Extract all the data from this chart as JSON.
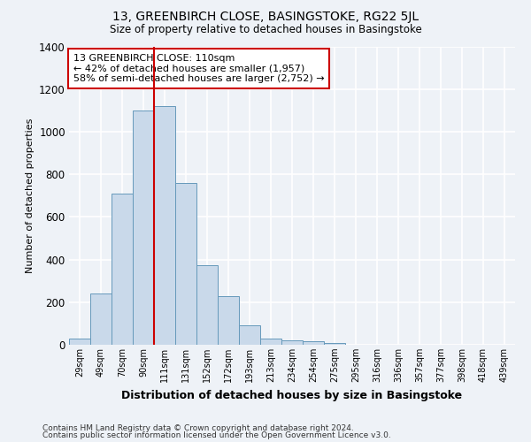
{
  "title": "13, GREENBIRCH CLOSE, BASINGSTOKE, RG22 5JL",
  "subtitle": "Size of property relative to detached houses in Basingstoke",
  "xlabel": "Distribution of detached houses by size in Basingstoke",
  "ylabel": "Number of detached properties",
  "heights": [
    30,
    240,
    710,
    1100,
    1120,
    760,
    375,
    230,
    90,
    30,
    20,
    15,
    10,
    0,
    0,
    0,
    0,
    0,
    0,
    0,
    0
  ],
  "bar_labels": [
    "29sqm",
    "49sqm",
    "70sqm",
    "90sqm",
    "111sqm",
    "131sqm",
    "152sqm",
    "172sqm",
    "193sqm",
    "213sqm",
    "234sqm",
    "254sqm",
    "275sqm",
    "295sqm",
    "316sqm",
    "336sqm",
    "357sqm",
    "377sqm",
    "398sqm",
    "418sqm",
    "439sqm"
  ],
  "bar_color": "#c9d9ea",
  "bar_edge_color": "#6699bb",
  "vline_color": "#cc0000",
  "annotation_text": "13 GREENBIRCH CLOSE: 110sqm\n← 42% of detached houses are smaller (1,957)\n58% of semi-detached houses are larger (2,752) →",
  "annotation_box_facecolor": "#ffffff",
  "annotation_box_edgecolor": "#cc0000",
  "ylim": [
    0,
    1400
  ],
  "yticks": [
    0,
    200,
    400,
    600,
    800,
    1000,
    1200,
    1400
  ],
  "bg_color": "#eef2f7",
  "grid_color": "#ffffff",
  "footnote1": "Contains HM Land Registry data © Crown copyright and database right 2024.",
  "footnote2": "Contains public sector information licensed under the Open Government Licence v3.0."
}
